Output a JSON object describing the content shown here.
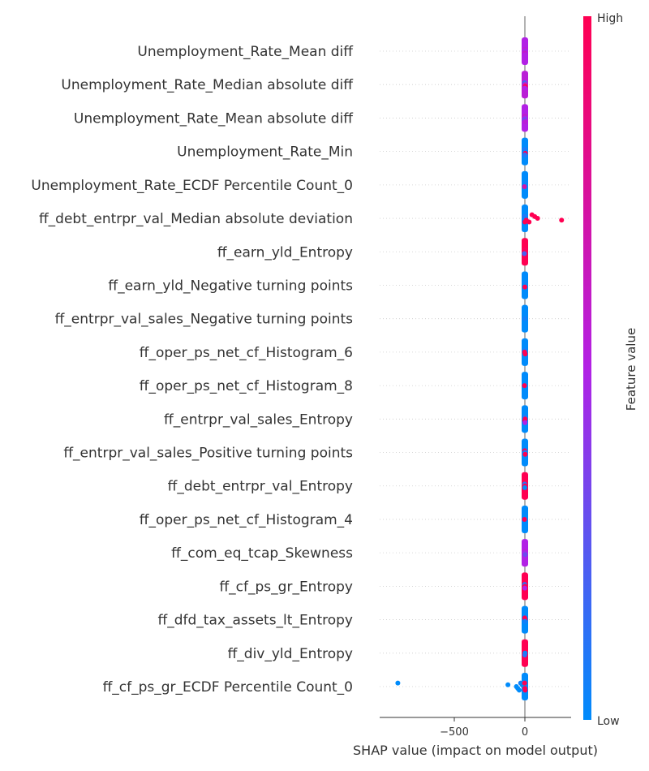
{
  "chart_data": {
    "type": "scatter",
    "subtype": "shap-beeswarm",
    "title": "",
    "xlabel": "SHAP value (impact on model output)",
    "xlim": [
      -950,
      310
    ],
    "xticks": [
      -500,
      0
    ],
    "xtick_labels": [
      "−500",
      "0"
    ],
    "grid": false,
    "colorbar": {
      "title": "Feature value",
      "high_label": "High",
      "low_label": "Low",
      "low_color": "#008bfb",
      "mid_color": "#b221e5",
      "high_color": "#ff0052"
    },
    "features": [
      {
        "name": "Unemployment_Rate_Mean diff",
        "points": [
          {
            "x": 0,
            "v": 0.5
          },
          {
            "x": -1,
            "v": 0.55
          },
          {
            "x": 1,
            "v": 0.45
          },
          {
            "x": 0,
            "v": 0.6
          },
          {
            "x": 2,
            "v": 0.5
          }
        ]
      },
      {
        "name": "Unemployment_Rate_Median absolute diff",
        "points": [
          {
            "x": 0,
            "v": 0.55
          },
          {
            "x": -2,
            "v": 0.2
          },
          {
            "x": 1,
            "v": 0.6
          },
          {
            "x": 3,
            "v": 1.0
          },
          {
            "x": 0,
            "v": 0.5
          }
        ]
      },
      {
        "name": "Unemployment_Rate_Mean absolute diff",
        "points": [
          {
            "x": 0,
            "v": 0.5
          },
          {
            "x": -1,
            "v": 0.6
          },
          {
            "x": 1,
            "v": 0.45
          },
          {
            "x": -3,
            "v": 0.3
          },
          {
            "x": 2,
            "v": 0.55
          }
        ]
      },
      {
        "name": "Unemployment_Rate_Min",
        "points": [
          {
            "x": 0,
            "v": 0.0
          },
          {
            "x": -1,
            "v": 0.1
          },
          {
            "x": 1,
            "v": 0.05
          },
          {
            "x": 3,
            "v": 1.0
          },
          {
            "x": 0,
            "v": 0.1
          }
        ]
      },
      {
        "name": "Unemployment_Rate_ECDF Percentile Count_0",
        "points": [
          {
            "x": 0,
            "v": 0.0
          },
          {
            "x": 1,
            "v": 0.05
          },
          {
            "x": -1,
            "v": 0.0
          },
          {
            "x": -3,
            "v": 0.7
          }
        ]
      },
      {
        "name": "ff_debt_entrpr_val_Median absolute deviation",
        "points": [
          {
            "x": 0,
            "v": 0.0
          },
          {
            "x": -2,
            "v": 0.1
          },
          {
            "x": 2,
            "v": 0.05
          },
          {
            "x": 10,
            "v": 1.0
          },
          {
            "x": 30,
            "v": 1.0
          },
          {
            "x": 50,
            "v": 1.0
          },
          {
            "x": 70,
            "v": 1.0
          },
          {
            "x": 90,
            "v": 1.0
          },
          {
            "x": 260,
            "v": 1.0
          },
          {
            "x": 0,
            "v": 1.0
          }
        ]
      },
      {
        "name": "ff_earn_yld_Entropy",
        "points": [
          {
            "x": 0,
            "v": 1.0
          },
          {
            "x": 1,
            "v": 0.95
          },
          {
            "x": -1,
            "v": 1.0
          },
          {
            "x": -4,
            "v": 0.2
          }
        ]
      },
      {
        "name": "ff_earn_yld_Negative turning points",
        "points": [
          {
            "x": 0,
            "v": 0.0
          },
          {
            "x": 1,
            "v": 0.05
          },
          {
            "x": -1,
            "v": 0.0
          },
          {
            "x": 0,
            "v": 1.0
          }
        ]
      },
      {
        "name": "ff_entrpr_val_sales_Negative turning points",
        "points": [
          {
            "x": 0,
            "v": 0.0
          },
          {
            "x": 1,
            "v": 0.0
          },
          {
            "x": -1,
            "v": 0.05
          }
        ]
      },
      {
        "name": "ff_oper_ps_net_cf_Histogram_6",
        "points": [
          {
            "x": 0,
            "v": 0.0
          },
          {
            "x": 1,
            "v": 0.05
          },
          {
            "x": -2,
            "v": 1.0
          },
          {
            "x": 2,
            "v": 1.0
          }
        ]
      },
      {
        "name": "ff_oper_ps_net_cf_Histogram_8",
        "points": [
          {
            "x": 0,
            "v": 0.0
          },
          {
            "x": 1,
            "v": 0.0
          },
          {
            "x": -3,
            "v": 1.0
          }
        ]
      },
      {
        "name": "ff_entrpr_val_sales_Entropy",
        "points": [
          {
            "x": 0,
            "v": 0.0
          },
          {
            "x": -2,
            "v": 0.1
          },
          {
            "x": 2,
            "v": 1.0
          },
          {
            "x": -1,
            "v": 1.0
          },
          {
            "x": 1,
            "v": 0.5
          }
        ]
      },
      {
        "name": "ff_entrpr_val_sales_Positive turning points",
        "points": [
          {
            "x": 0,
            "v": 0.0
          },
          {
            "x": -1,
            "v": 1.0
          },
          {
            "x": 1,
            "v": 0.05
          },
          {
            "x": 2,
            "v": 1.0
          }
        ]
      },
      {
        "name": "ff_debt_entrpr_val_Entropy",
        "points": [
          {
            "x": 0,
            "v": 1.0
          },
          {
            "x": -2,
            "v": 0.1
          },
          {
            "x": 1,
            "v": 1.0
          },
          {
            "x": -1,
            "v": 0.0
          }
        ]
      },
      {
        "name": "ff_oper_ps_net_cf_Histogram_4",
        "points": [
          {
            "x": 0,
            "v": 0.0
          },
          {
            "x": 1,
            "v": 0.0
          },
          {
            "x": -3,
            "v": 1.0
          }
        ]
      },
      {
        "name": "ff_com_eq_tcap_Skewness",
        "points": [
          {
            "x": 0,
            "v": 0.5
          },
          {
            "x": 1,
            "v": 0.55
          },
          {
            "x": -1,
            "v": 0.45
          },
          {
            "x": 2,
            "v": 0.3
          }
        ]
      },
      {
        "name": "ff_cf_ps_gr_Entropy",
        "points": [
          {
            "x": 0,
            "v": 1.0
          },
          {
            "x": -2,
            "v": 0.1
          },
          {
            "x": 1,
            "v": 1.0
          },
          {
            "x": -1,
            "v": 0.5
          }
        ]
      },
      {
        "name": "ff_dfd_tax_assets_lt_Entropy",
        "points": [
          {
            "x": 0,
            "v": 0.0
          },
          {
            "x": -1,
            "v": 1.0
          },
          {
            "x": 2,
            "v": 1.0
          },
          {
            "x": 1,
            "v": 0.05
          }
        ]
      },
      {
        "name": "ff_div_yld_Entropy",
        "points": [
          {
            "x": 0,
            "v": 1.0
          },
          {
            "x": -2,
            "v": 1.0
          },
          {
            "x": 1,
            "v": 0.0
          },
          {
            "x": -1,
            "v": 0.1
          }
        ]
      },
      {
        "name": "ff_cf_ps_gr_ECDF Percentile Count_0",
        "points": [
          {
            "x": -900,
            "v": 0.0
          },
          {
            "x": -120,
            "v": 0.0
          },
          {
            "x": -60,
            "v": 0.0
          },
          {
            "x": -50,
            "v": 0.0
          },
          {
            "x": -40,
            "v": 0.0
          },
          {
            "x": -30,
            "v": 0.05
          },
          {
            "x": -20,
            "v": 0.0
          },
          {
            "x": -10,
            "v": 0.0
          },
          {
            "x": 0,
            "v": 1.0
          },
          {
            "x": 2,
            "v": 1.0
          },
          {
            "x": -2,
            "v": 1.0
          }
        ]
      }
    ]
  }
}
